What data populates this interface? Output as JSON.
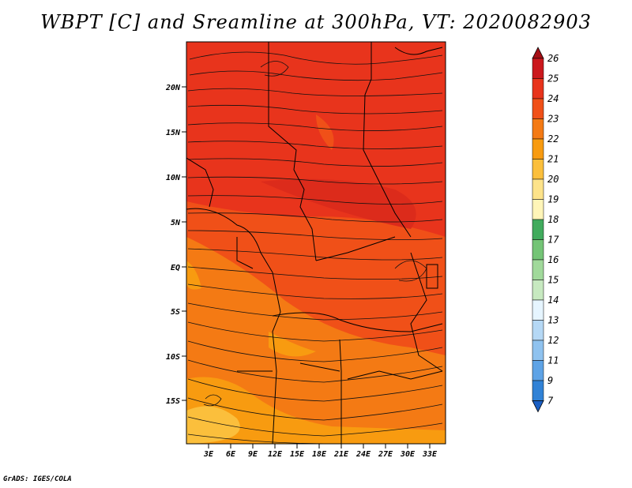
{
  "title": "WBPT [C] and Sreamline at 300hPa, VT: 2020082903",
  "footer": "GrADS: IGES/COLA",
  "lat_labels": [
    "20N",
    "15N",
    "10N",
    "5N",
    "EQ",
    "5S",
    "10S",
    "15S"
  ],
  "lon_labels": [
    "3E",
    "6E",
    "9E",
    "12E",
    "15E",
    "18E",
    "21E",
    "24E",
    "27E",
    "30E",
    "33E"
  ],
  "colorbar": {
    "labels": [
      "26",
      "25",
      "24",
      "23",
      "22",
      "21",
      "20",
      "19",
      "18",
      "17",
      "16",
      "15",
      "14",
      "13",
      "12",
      "11",
      "9",
      "7"
    ],
    "colors": [
      "#a50f15",
      "#cb181d",
      "#e8341c",
      "#f05018",
      "#f47a14",
      "#f89b10",
      "#fbbf3c",
      "#fde38a",
      "#fff5b8",
      "#41ab5d",
      "#74c476",
      "#a1d99b",
      "#c7e9c0",
      "#e6f5ff",
      "#b5d8f5",
      "#8fc2ef",
      "#5ea3e6",
      "#3182d6",
      "#1a5fc4"
    ]
  }
}
